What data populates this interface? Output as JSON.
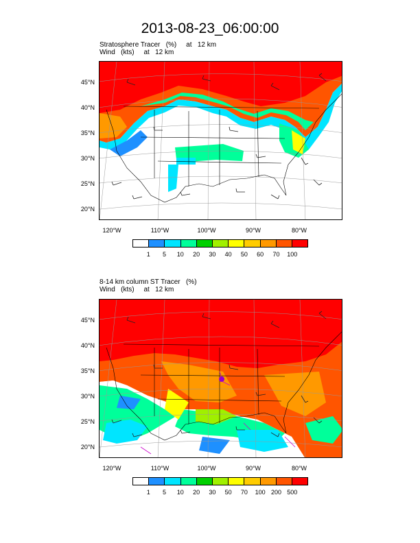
{
  "title": "2013-08-23_06:00:00",
  "panels": [
    {
      "label_line1": "Stratosphere Tracer   (%)     at   12 km",
      "label_line2": "Wind   (kts)     at   12 km",
      "lat_labels": [
        "45°N",
        "40°N",
        "35°N",
        "30°N",
        "25°N",
        "20°N"
      ],
      "lon_labels": [
        "120°W",
        "110°W",
        "100°W",
        "90°W",
        "80°W"
      ],
      "colorbar_labels": [
        "1",
        "5",
        "10",
        "20",
        "30",
        "40",
        "50",
        "60",
        "70",
        "100"
      ],
      "colorbar_colors": [
        "#ffffff",
        "#1e90ff",
        "#00e5ff",
        "#00ff9a",
        "#00d000",
        "#a0f000",
        "#ffff00",
        "#ffcc00",
        "#ff9900",
        "#ff5500",
        "#ff0000"
      ]
    },
    {
      "label_line1": "8-14 km column ST Tracer   (%)",
      "label_line2": "Wind   (kts)     at   12 km",
      "lat_labels": [
        "45°N",
        "40°N",
        "35°N",
        "30°N",
        "25°N",
        "20°N"
      ],
      "lon_labels": [
        "120°W",
        "110°W",
        "100°W",
        "90°W",
        "80°W"
      ],
      "colorbar_labels": [
        "1",
        "5",
        "10",
        "20",
        "30",
        "50",
        "70",
        "100",
        "200",
        "500"
      ],
      "colorbar_colors": [
        "#ffffff",
        "#1e90ff",
        "#00e5ff",
        "#00ff9a",
        "#00d000",
        "#a0f000",
        "#ffff00",
        "#ffcc00",
        "#ff9900",
        "#ff5500",
        "#ff0000"
      ]
    }
  ]
}
